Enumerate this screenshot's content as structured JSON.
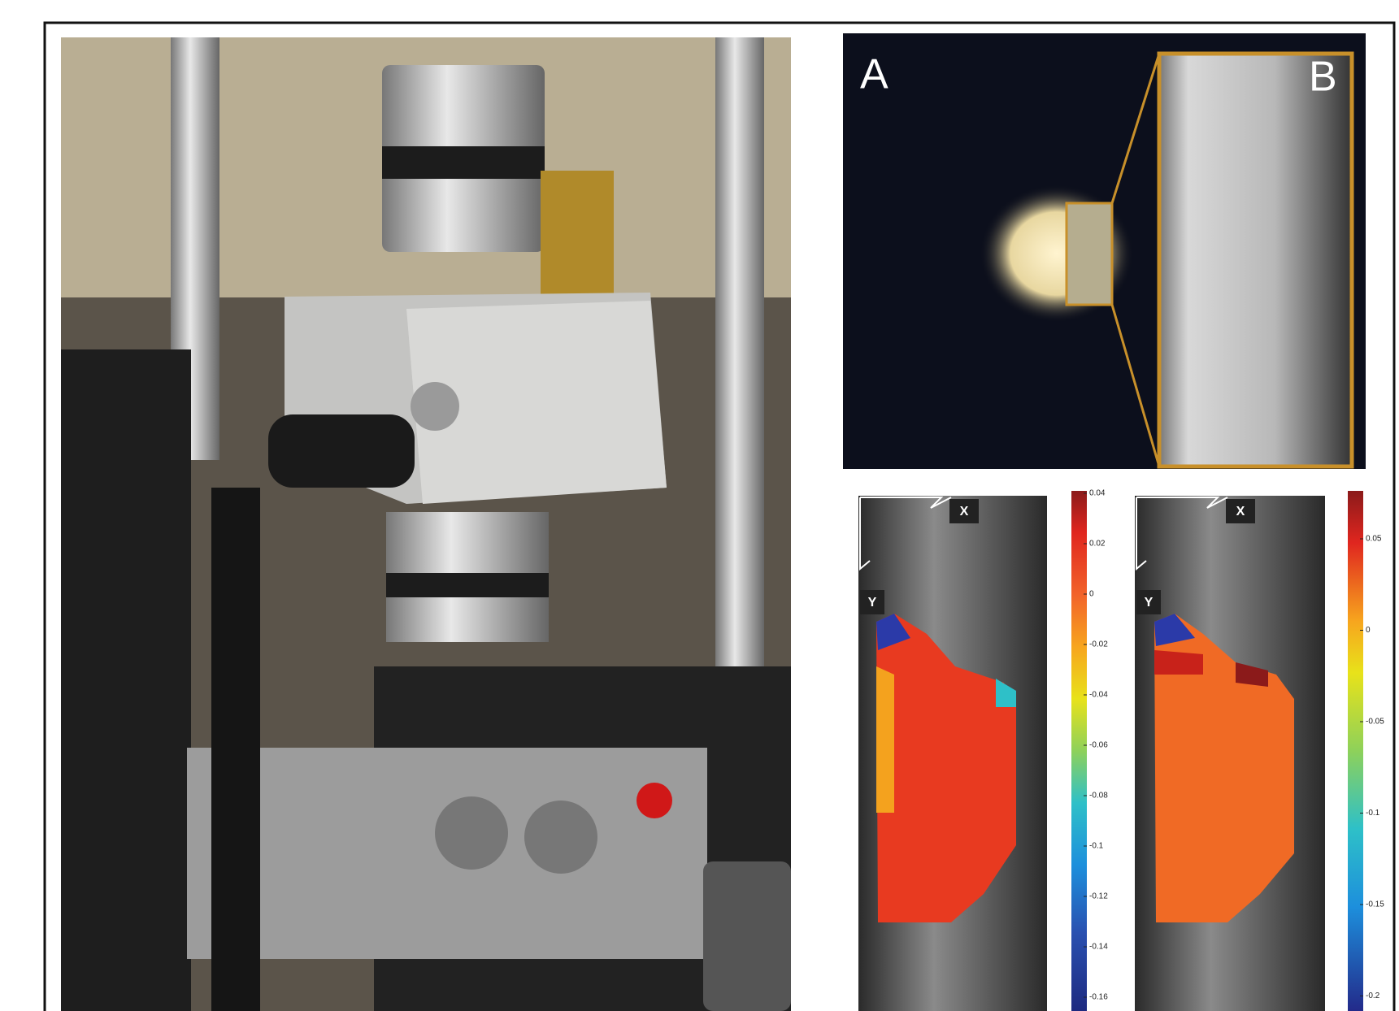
{
  "panel_labels": {
    "a": "A",
    "b": "B"
  },
  "strain_maps": [
    {
      "axis_x": "X",
      "axis_y": "Y",
      "colorbar_ticks": [
        "0.04",
        "0.02",
        "0",
        "-0.02",
        "-0.04",
        "-0.06",
        "-0.08",
        "-0.1",
        "-0.12",
        "-0.14",
        "-0.16"
      ]
    },
    {
      "axis_x": "X",
      "axis_y": "Y",
      "colorbar_ticks": [
        "0.05",
        "0",
        "-0.05",
        "-0.1",
        "-0.15",
        "-0.2"
      ]
    }
  ]
}
